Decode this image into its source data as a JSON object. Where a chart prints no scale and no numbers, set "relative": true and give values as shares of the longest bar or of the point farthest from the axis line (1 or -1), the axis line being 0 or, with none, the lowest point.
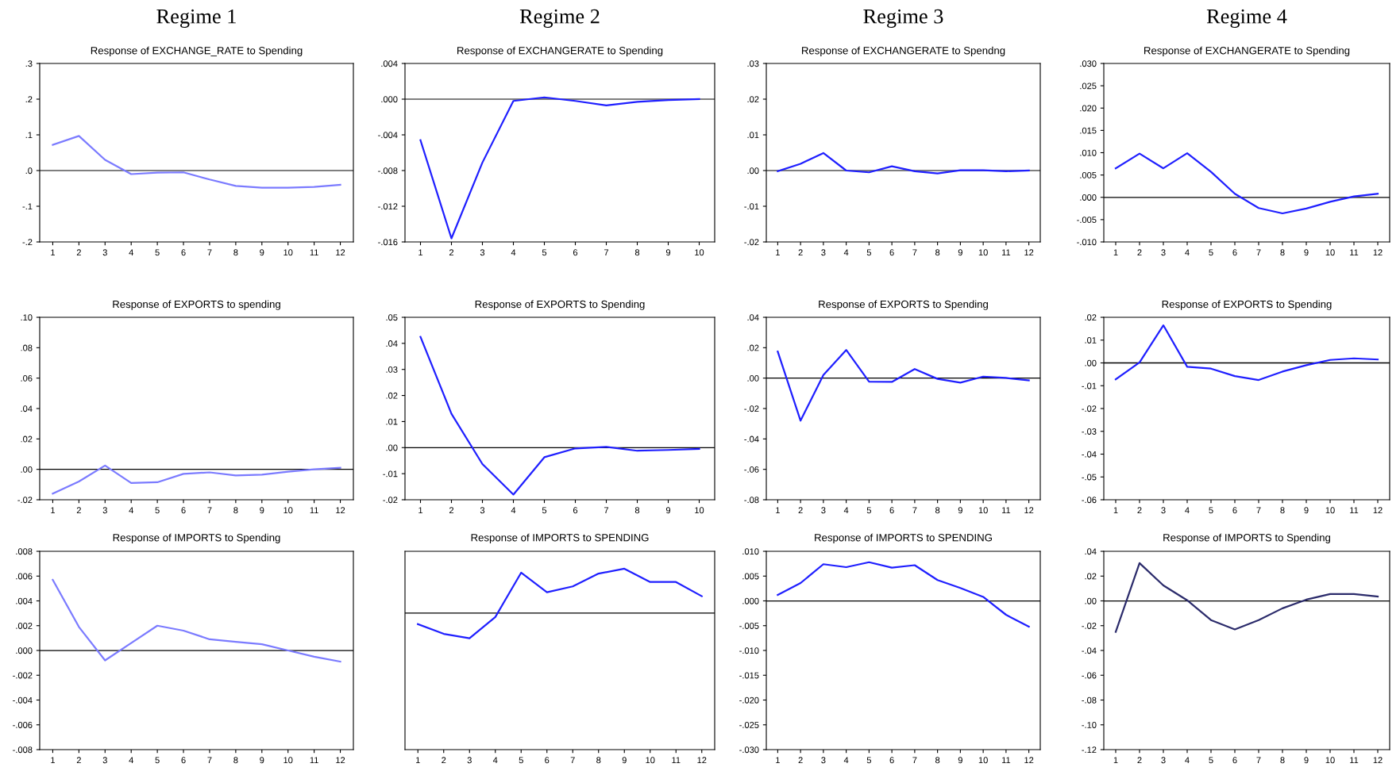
{
  "chart_data": [
    {
      "type": "line",
      "title": "Regime 1",
      "subtitle": "Response of EXCHANGE_RATE to Spending",
      "categories": [
        "1",
        "2",
        "3",
        "4",
        "5",
        "6",
        "7",
        "8",
        "9",
        "10",
        "11",
        "12"
      ],
      "series": [
        {
          "color": "#7b7bff",
          "values": [
            0.072,
            0.097,
            0.03,
            -0.01,
            -0.006,
            -0.005,
            -0.025,
            -0.043,
            -0.048,
            -0.048,
            -0.046,
            -0.04
          ]
        }
      ],
      "ylim": [
        -0.2,
        0.3
      ],
      "yticks": [
        {
          "value": 0.3,
          "label": ".3"
        },
        {
          "value": 0.2,
          "label": ".2"
        },
        {
          "value": 0.1,
          "label": ".1"
        },
        {
          "value": 0,
          "label": ".0"
        },
        {
          "value": -0.1,
          "label": "-.1"
        },
        {
          "value": -0.2,
          "label": "-.2"
        }
      ],
      "ref_lines": [
        {
          "axis": "y",
          "value": 0,
          "color": "#000000"
        }
      ]
    },
    {
      "type": "line",
      "title": "Regime 2",
      "subtitle": "Response of EXCHANGERATE to Spending",
      "categories": [
        "1",
        "2",
        "3",
        "4",
        "5",
        "6",
        "7",
        "8",
        "9",
        "10"
      ],
      "series": [
        {
          "color": "#1f1fff",
          "values": [
            -0.0046,
            -0.0156,
            -0.0071,
            -0.0002,
            0.0002,
            -0.0002,
            -0.0007,
            -0.0003,
            -0.0001,
            0.0
          ]
        }
      ],
      "ylim": [
        -0.016,
        0.004
      ],
      "yticks": [
        {
          "value": 0.004,
          "label": ".004"
        },
        {
          "value": 0,
          "label": ".000"
        },
        {
          "value": -0.004,
          "label": "-.004"
        },
        {
          "value": -0.008,
          "label": "-.008"
        },
        {
          "value": -0.012,
          "label": "-.012"
        },
        {
          "value": -0.016,
          "label": "-.016"
        }
      ],
      "ref_lines": [
        {
          "axis": "y",
          "value": 0,
          "color": "#000000"
        }
      ]
    },
    {
      "type": "line",
      "title": "Regime 3",
      "subtitle": "Response of EXCHANGERATE to Spendng",
      "categories": [
        "1",
        "2",
        "3",
        "4",
        "5",
        "6",
        "7",
        "8",
        "9",
        "10",
        "11",
        "12"
      ],
      "series": [
        {
          "color": "#1f1fff",
          "values": [
            -0.0002,
            0.0019,
            0.0049,
            0.0,
            -0.0005,
            0.0012,
            -0.0002,
            -0.0008,
            0.0001,
            0.0001,
            -0.0002,
            0.0
          ]
        }
      ],
      "ylim": [
        -0.02,
        0.03
      ],
      "yticks": [
        {
          "value": 0.03,
          "label": ".03"
        },
        {
          "value": 0.02,
          "label": ".02"
        },
        {
          "value": 0.01,
          "label": ".01"
        },
        {
          "value": 0,
          "label": ".00"
        },
        {
          "value": -0.01,
          "label": "-.01"
        },
        {
          "value": -0.02,
          "label": "-.02"
        }
      ],
      "ref_lines": [
        {
          "axis": "y",
          "value": 0,
          "color": "#000000"
        }
      ]
    },
    {
      "type": "line",
      "title": "Regime 4",
      "subtitle": "Response of EXCHANGERATE to Spending",
      "categories": [
        "1",
        "2",
        "3",
        "4",
        "5",
        "6",
        "7",
        "8",
        "9",
        "10",
        "11",
        "12"
      ],
      "series": [
        {
          "color": "#1f1fff",
          "values": [
            0.0065,
            0.0098,
            0.0065,
            0.0099,
            0.0057,
            0.0008,
            -0.0024,
            -0.0036,
            -0.0025,
            -0.001,
            0.0002,
            0.0008
          ]
        }
      ],
      "ylim": [
        -0.01,
        0.03
      ],
      "yticks": [
        {
          "value": 0.03,
          "label": ".030"
        },
        {
          "value": 0.025,
          "label": ".025"
        },
        {
          "value": 0.02,
          "label": ".020"
        },
        {
          "value": 0.015,
          "label": ".015"
        },
        {
          "value": 0.01,
          "label": ".010"
        },
        {
          "value": 0.005,
          "label": ".005"
        },
        {
          "value": 0,
          "label": ".000"
        },
        {
          "value": -0.005,
          "label": "-.005"
        },
        {
          "value": -0.01,
          "label": "-.010"
        }
      ],
      "ref_lines": [
        {
          "axis": "y",
          "value": 0,
          "color": "#000000"
        }
      ]
    },
    {
      "type": "line",
      "title": "Response of EXPORTS to spending",
      "categories": [
        "1",
        "2",
        "3",
        "4",
        "5",
        "6",
        "7",
        "8",
        "9",
        "10",
        "11",
        "12"
      ],
      "series": [
        {
          "color": "#7b7bff",
          "values": [
            -0.016,
            -0.008,
            0.0025,
            -0.009,
            -0.0085,
            -0.003,
            -0.002,
            -0.004,
            -0.0035,
            -0.0015,
            0.0,
            0.001
          ]
        }
      ],
      "ylim": [
        -0.02,
        0.1
      ],
      "yticks": [
        {
          "value": 0.1,
          "label": ".10"
        },
        {
          "value": 0.08,
          "label": ".08"
        },
        {
          "value": 0.06,
          "label": ".06"
        },
        {
          "value": 0.04,
          "label": ".04"
        },
        {
          "value": 0.02,
          "label": ".02"
        },
        {
          "value": 0,
          "label": ".00"
        },
        {
          "value": -0.02,
          "label": "-.02"
        }
      ],
      "ref_lines": [
        {
          "axis": "y",
          "value": 0,
          "color": "#000000"
        }
      ]
    },
    {
      "type": "line",
      "title": "Response of EXPORTS to Spending",
      "categories": [
        "1",
        "2",
        "3",
        "4",
        "5",
        "6",
        "7",
        "8",
        "9",
        "10"
      ],
      "series": [
        {
          "color": "#1f1fff",
          "values": [
            0.0425,
            0.013,
            -0.0063,
            -0.018,
            -0.0037,
            -0.0003,
            0.0003,
            -0.0012,
            -0.0009,
            -0.0005
          ]
        }
      ],
      "ylim": [
        -0.02,
        0.05
      ],
      "yticks": [
        {
          "value": 0.05,
          "label": ".05"
        },
        {
          "value": 0.04,
          "label": ".04"
        },
        {
          "value": 0.03,
          "label": ".03"
        },
        {
          "value": 0.02,
          "label": ".02"
        },
        {
          "value": 0.01,
          "label": ".01"
        },
        {
          "value": 0,
          "label": ".00"
        },
        {
          "value": -0.01,
          "label": "-.01"
        },
        {
          "value": -0.02,
          "label": "-.02"
        }
      ],
      "ref_lines": [
        {
          "axis": "y",
          "value": 0,
          "color": "#000000"
        }
      ]
    },
    {
      "type": "line",
      "title": "Response of EXPORTS to Spending",
      "categories": [
        "1",
        "2",
        "3",
        "4",
        "5",
        "6",
        "7",
        "8",
        "9",
        "10",
        "11",
        "12"
      ],
      "series": [
        {
          "color": "#1f1fff",
          "values": [
            0.0175,
            -0.028,
            0.002,
            0.0185,
            -0.0023,
            -0.0025,
            0.006,
            -0.0005,
            -0.003,
            0.001,
            0.0001,
            -0.0015
          ]
        }
      ],
      "ylim": [
        -0.08,
        0.04
      ],
      "yticks": [
        {
          "value": 0.04,
          "label": ".04"
        },
        {
          "value": 0.02,
          "label": ".02"
        },
        {
          "value": 0,
          "label": ".00"
        },
        {
          "value": -0.02,
          "label": "-.02"
        },
        {
          "value": -0.04,
          "label": "-.04"
        },
        {
          "value": -0.06,
          "label": "-.06"
        },
        {
          "value": -0.08,
          "label": "-.08"
        }
      ],
      "ref_lines": [
        {
          "axis": "y",
          "value": 0,
          "color": "#000000"
        }
      ]
    },
    {
      "type": "line",
      "title": "Response of EXPORTS to Spending",
      "categories": [
        "1",
        "2",
        "3",
        "4",
        "5",
        "6",
        "7",
        "8",
        "9",
        "10",
        "11",
        "12"
      ],
      "series": [
        {
          "color": "#1f1fff",
          "values": [
            -0.0072,
            0.0002,
            0.0165,
            -0.0017,
            -0.0025,
            -0.0058,
            -0.0075,
            -0.0038,
            -0.001,
            0.0013,
            0.002,
            0.0015
          ]
        }
      ],
      "ylim": [
        -0.06,
        0.02
      ],
      "yticks": [
        {
          "value": 0.02,
          "label": ".02"
        },
        {
          "value": 0.01,
          "label": ".01"
        },
        {
          "value": 0,
          "label": ".00"
        },
        {
          "value": -0.01,
          "label": "-.01"
        },
        {
          "value": -0.02,
          "label": "-.02"
        },
        {
          "value": -0.03,
          "label": "-.03"
        },
        {
          "value": -0.04,
          "label": "-.04"
        },
        {
          "value": -0.05,
          "label": "-.05"
        },
        {
          "value": -0.06,
          "label": "-.06"
        }
      ],
      "ref_lines": [
        {
          "axis": "y",
          "value": 0,
          "color": "#000000"
        }
      ]
    },
    {
      "type": "line",
      "title": "Response of IMPORTS to Spending",
      "categories": [
        "1",
        "2",
        "3",
        "4",
        "5",
        "6",
        "7",
        "8",
        "9",
        "10",
        "11",
        "12"
      ],
      "series": [
        {
          "color": "#7b7bff",
          "values": [
            0.0057,
            0.0019,
            -0.0008,
            0.0006,
            0.002,
            0.0016,
            0.0009,
            0.0007,
            0.0005,
            0.0,
            -0.0005,
            -0.0009
          ]
        }
      ],
      "ylim": [
        -0.008,
        0.008
      ],
      "yticks": [
        {
          "value": 0.008,
          "label": ".008"
        },
        {
          "value": 0.006,
          "label": ".006"
        },
        {
          "value": 0.004,
          "label": ".004"
        },
        {
          "value": 0.002,
          "label": ".002"
        },
        {
          "value": 0,
          "label": ".000"
        },
        {
          "value": -0.002,
          "label": "-.002"
        },
        {
          "value": -0.004,
          "label": "-.004"
        },
        {
          "value": -0.006,
          "label": "-.006"
        },
        {
          "value": -0.008,
          "label": "-.008"
        }
      ],
      "ref_lines": [
        {
          "axis": "y",
          "value": 0,
          "color": "#000000"
        }
      ]
    },
    {
      "type": "line",
      "title": "Response of IMPORTS to SPENDING",
      "categories": [
        "1",
        "2",
        "3",
        "4",
        "5",
        "6",
        "7",
        "8",
        "9",
        "10",
        "11",
        "12"
      ],
      "relative": true,
      "tick_labels": "x",
      "series": [
        {
          "color": "#1f1fff",
          "values": [
            -0.25,
            -0.47,
            -0.57,
            -0.09,
            0.91,
            0.47,
            0.6,
            0.89,
            1,
            0.7,
            0.7,
            0.38
          ]
        }
      ],
      "ref_lines": [
        {
          "axis": "y",
          "value": 0,
          "color": "#000000"
        }
      ]
    },
    {
      "type": "line",
      "title": "Response of IMPORTS to SPENDING",
      "categories": [
        "1",
        "2",
        "3",
        "4",
        "5",
        "6",
        "7",
        "8",
        "9",
        "10",
        "11",
        "12"
      ],
      "series": [
        {
          "color": "#1f1fff",
          "values": [
            0.0012,
            0.0036,
            0.0074,
            0.0068,
            0.0078,
            0.0067,
            0.0072,
            0.0042,
            0.0026,
            0.0008,
            -0.0028,
            -0.0052
          ]
        }
      ],
      "ylim": [
        -0.03,
        0.01
      ],
      "yticks": [
        {
          "value": 0.01,
          "label": ".010"
        },
        {
          "value": 0.005,
          "label": ".005"
        },
        {
          "value": 0,
          "label": ".000"
        },
        {
          "value": -0.005,
          "label": "-.005"
        },
        {
          "value": -0.01,
          "label": "-.010"
        },
        {
          "value": -0.015,
          "label": "-.015"
        },
        {
          "value": -0.02,
          "label": "-.020"
        },
        {
          "value": -0.025,
          "label": "-.025"
        },
        {
          "value": -0.03,
          "label": "-.030"
        }
      ],
      "ref_lines": [
        {
          "axis": "y",
          "value": 0,
          "color": "#000000"
        }
      ]
    },
    {
      "type": "line",
      "title": "Response of IMPORTS to Spending",
      "categories": [
        "1",
        "2",
        "3",
        "4",
        "5",
        "6",
        "7",
        "8",
        "9",
        "10",
        "11",
        "12"
      ],
      "series": [
        {
          "color": "#2b2b6b",
          "values": [
            -0.025,
            0.0305,
            0.0125,
            0.0005,
            -0.0155,
            -0.023,
            -0.0155,
            -0.006,
            0.001,
            0.0055,
            0.0055,
            0.0035
          ]
        }
      ],
      "ylim": [
        -0.12,
        0.04
      ],
      "yticks": [
        {
          "value": 0.04,
          "label": ".04"
        },
        {
          "value": 0.02,
          "label": ".02"
        },
        {
          "value": 0,
          "label": ".00"
        },
        {
          "value": -0.02,
          "label": "-.02"
        },
        {
          "value": -0.04,
          "label": "-.04"
        },
        {
          "value": -0.06,
          "label": "-.06"
        },
        {
          "value": -0.08,
          "label": "-.08"
        },
        {
          "value": -0.1,
          "label": "-.10"
        },
        {
          "value": -0.12,
          "label": "-.12"
        }
      ],
      "ref_lines": [
        {
          "axis": "y",
          "value": 0,
          "color": "#000000"
        }
      ]
    }
  ]
}
